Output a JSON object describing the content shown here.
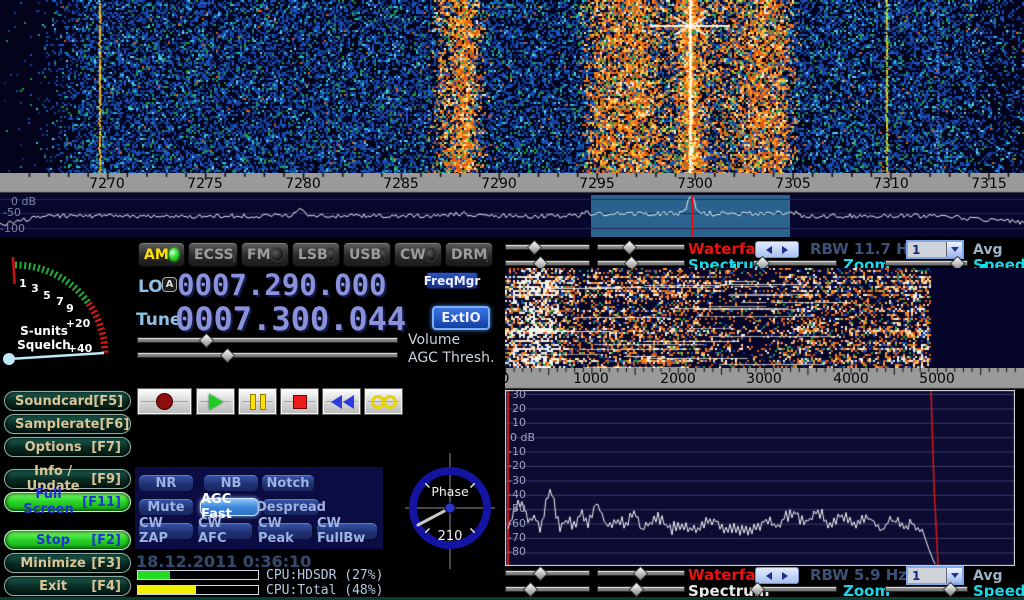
{
  "top_display": {
    "scale_labels": [
      "7270",
      "7275",
      "7280",
      "7285",
      "7290",
      "7295",
      "7300",
      "7305",
      "7310",
      "7315"
    ],
    "db_labels": [
      "0 dB",
      "-50",
      "-100"
    ]
  },
  "meter": {
    "title": "S-units",
    "subtitle": "Squelch",
    "ticks": [
      "1",
      "3",
      "5",
      "7",
      "9",
      "+20",
      "+40"
    ]
  },
  "left_buttons": [
    {
      "label": "Soundcard",
      "key": "[F5]",
      "style": "teal"
    },
    {
      "label": "Samplerate",
      "key": "[F6]",
      "style": "teal"
    },
    {
      "label": "Options",
      "key": "[F7]",
      "style": "teal"
    },
    {
      "label": "Info / Update",
      "key": "[F9]",
      "style": "teal"
    },
    {
      "label": "Full Screen",
      "key": "[F11]",
      "style": "green"
    },
    {
      "label": "Stop",
      "key": "[F2]",
      "style": "green"
    },
    {
      "label": "Minimize",
      "key": "[F3]",
      "style": "teal"
    },
    {
      "label": "Exit",
      "key": "[F4]",
      "style": "teal"
    }
  ],
  "modes": [
    {
      "label": "AM",
      "active": true
    },
    {
      "label": "ECSS",
      "active": false
    },
    {
      "label": "FM",
      "active": false
    },
    {
      "label": "LSB",
      "active": false
    },
    {
      "label": "USB",
      "active": false
    },
    {
      "label": "CW",
      "active": false
    },
    {
      "label": "DRM",
      "active": false
    }
  ],
  "frequency": {
    "lo_label": "LO",
    "lo_badge": "A",
    "lo_value": "0007.290.000",
    "tune_label": "Tune",
    "tune_value": "0007.300.044"
  },
  "side_buttons": {
    "freqmgr": "FreqMgr",
    "extio": "ExtIO"
  },
  "slider_labels": {
    "volume": "Volume",
    "agc": "AGC Thresh."
  },
  "transport_icons": [
    "record",
    "play",
    "pause",
    "stop",
    "rewind",
    "loop"
  ],
  "dsp_buttons": [
    {
      "label": "NR",
      "active": false
    },
    {
      "label": "NB",
      "active": false
    },
    {
      "label": "Notch",
      "active": false
    },
    {
      "label": "Mute",
      "active": false
    },
    {
      "label": "AGC Fast",
      "active": true
    },
    {
      "label": "Despread",
      "active": false
    },
    {
      "label": "CW ZAP",
      "active": false
    },
    {
      "label": "CW AFC",
      "active": false
    },
    {
      "label": "CW Peak",
      "active": false
    },
    {
      "label": "CW FullBw",
      "active": false
    }
  ],
  "status": {
    "datetime": "18.12.2011 0:36:10",
    "cpu_hdsdr_label": "CPU:HDSDR (27%)",
    "cpu_total_label": "CPU:Total (48%)",
    "cpu_hdsdr_pct": 27,
    "cpu_total_pct": 48
  },
  "phase": {
    "label": "Phase",
    "value": "210"
  },
  "right_panel": {
    "top_controls": {
      "waterfall": "Waterfall",
      "spectrum": "Spectrum",
      "rbw": "RBW 11.7 Hz",
      "zoom": "Zoom",
      "avg": "Avg",
      "speed": "Speed",
      "avg_value": "1"
    },
    "bottom_controls": {
      "waterfall": "Waterfall",
      "spectrum": "Spectrum",
      "rbw": "RBW 5.9 Hz",
      "zoom": "Zoom",
      "avg": "Avg",
      "speed": "Speed",
      "avg_value": "1"
    },
    "scale_labels": [
      "0",
      "1000",
      "2000",
      "3000",
      "4000",
      "5000"
    ],
    "db_labels": [
      "30",
      "20",
      "10",
      "0 dB",
      "-10",
      "-20",
      "-30",
      "-40",
      "-50",
      "-60",
      "-70",
      "-80"
    ]
  }
}
